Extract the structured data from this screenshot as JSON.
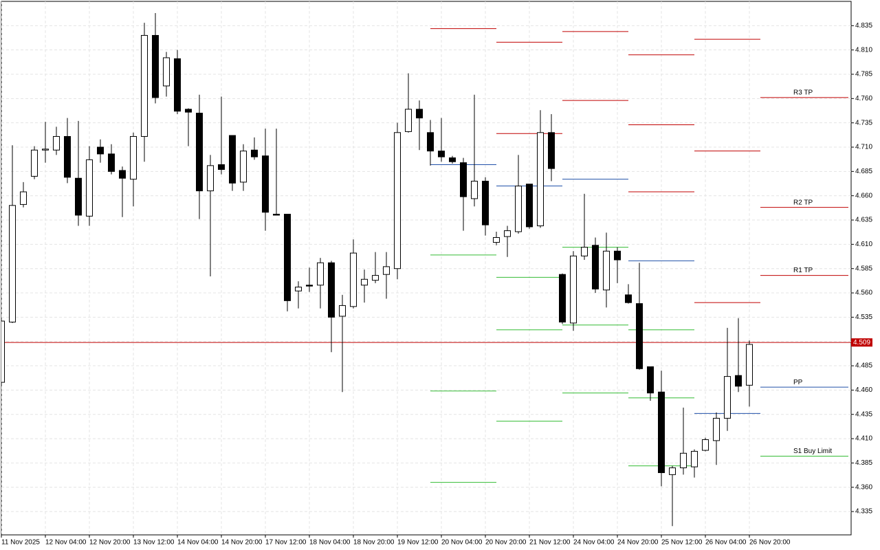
{
  "chart_data": {
    "type": "candlestick",
    "categories": [
      "11 Nov 2025",
      null,
      null,
      null,
      "12 Nov 04:00",
      null,
      null,
      null,
      "12 Nov 20:00",
      null,
      null,
      null,
      "13 Nov 12:00",
      null,
      null,
      null,
      "14 Nov 04:00",
      null,
      null,
      null,
      "14 Nov 20:00",
      null,
      null,
      null,
      "17 Nov 12:00",
      null,
      null,
      null,
      "18 Nov 04:00",
      null,
      null,
      null,
      "18 Nov 20:00",
      null,
      null,
      null,
      "19 Nov 12:00",
      null,
      null,
      null,
      "20 Nov 04:00",
      null,
      null,
      null,
      "20 Nov 20:00",
      null,
      null,
      null,
      "21 Nov 12:00",
      null,
      null,
      null,
      "24 Nov 04:00",
      null,
      null,
      null,
      "24 Nov 20:00",
      null,
      null,
      null,
      "25 Nov 12:00",
      null,
      null,
      null,
      "26 Nov 04:00",
      null,
      null,
      null,
      "26 Nov 20:00"
    ],
    "open": [
      4.468,
      4.53,
      4.651,
      4.68,
      4.707,
      4.707,
      4.721,
      4.678,
      4.639,
      4.71,
      4.703,
      4.686,
      4.677,
      4.721,
      4.825,
      4.773,
      4.801,
      4.749,
      4.745,
      4.665,
      4.692,
      4.722,
      4.674,
      4.707,
      4.701,
      4.641,
      4.641,
      4.562,
      4.568,
      4.568,
      4.591,
      4.536,
      4.546,
      4.568,
      4.573,
      4.579,
      4.585,
      4.726,
      4.749,
      4.725,
      4.706,
      4.699,
      4.694,
      4.657,
      4.675,
      4.612,
      4.618,
      4.623,
      4.672,
      4.629,
      4.725,
      4.579,
      4.529,
      4.598,
      4.609,
      4.563,
      4.603,
      4.558,
      4.549,
      4.484,
      4.458,
      4.373,
      4.38,
      4.381,
      4.398,
      4.408,
      4.431,
      4.475,
      4.465
    ],
    "high": [
      4.533,
      4.712,
      4.674,
      4.711,
      4.736,
      4.731,
      4.74,
      4.737,
      4.711,
      4.718,
      4.713,
      4.69,
      4.725,
      4.838,
      4.848,
      4.808,
      4.81,
      4.75,
      4.764,
      4.702,
      4.762,
      4.722,
      4.713,
      4.72,
      4.729,
      4.729,
      4.641,
      4.572,
      4.586,
      4.596,
      4.593,
      4.558,
      4.615,
      4.584,
      4.602,
      4.602,
      4.735,
      4.786,
      4.758,
      4.738,
      4.74,
      4.701,
      4.699,
      4.764,
      4.679,
      4.623,
      4.629,
      4.702,
      4.672,
      4.748,
      4.744,
      4.58,
      4.603,
      4.662,
      4.617,
      4.622,
      4.607,
      4.569,
      4.591,
      4.484,
      4.48,
      4.382,
      4.442,
      4.399,
      4.411,
      4.437,
      4.524,
      4.534,
      4.511
    ],
    "low": [
      4.466,
      4.529,
      4.648,
      4.677,
      4.694,
      4.702,
      4.673,
      4.629,
      4.629,
      4.694,
      4.682,
      4.638,
      4.649,
      4.695,
      4.755,
      4.762,
      4.744,
      4.711,
      4.636,
      4.577,
      4.682,
      4.665,
      4.665,
      4.697,
      4.624,
      4.64,
      4.541,
      4.544,
      4.561,
      4.544,
      4.499,
      4.458,
      4.544,
      4.55,
      4.57,
      4.554,
      4.574,
      4.725,
      4.707,
      4.691,
      4.695,
      4.693,
      4.624,
      4.649,
      4.619,
      4.609,
      4.597,
      4.621,
      4.626,
      4.627,
      4.675,
      4.528,
      4.521,
      4.594,
      4.56,
      4.545,
      4.57,
      4.549,
      4.481,
      4.449,
      4.361,
      4.32,
      4.373,
      4.37,
      4.397,
      4.383,
      4.418,
      4.458,
      4.443
    ],
    "close": [
      4.531,
      4.65,
      4.664,
      4.707,
      4.708,
      4.721,
      4.679,
      4.64,
      4.697,
      4.703,
      4.685,
      4.678,
      4.721,
      4.825,
      4.761,
      4.802,
      4.747,
      4.746,
      4.665,
      4.691,
      4.687,
      4.673,
      4.706,
      4.7,
      4.643,
      4.64,
      4.552,
      4.566,
      4.567,
      4.591,
      4.535,
      4.547,
      4.601,
      4.574,
      4.578,
      4.587,
      4.725,
      4.749,
      4.74,
      4.706,
      4.7,
      4.695,
      4.659,
      4.675,
      4.63,
      4.617,
      4.624,
      4.67,
      4.628,
      4.725,
      4.688,
      4.53,
      4.598,
      4.607,
      4.564,
      4.603,
      4.594,
      4.55,
      4.482,
      4.457,
      4.375,
      4.38,
      4.395,
      4.397,
      4.409,
      4.431,
      4.474,
      4.464,
      4.507
    ],
    "ylim": [
      4.311,
      4.86
    ],
    "yticks": [
      4.335,
      {
        "value": 4.36,
        "label": "4.360"
      },
      4.385,
      {
        "value": 4.41,
        "label": "4.410"
      },
      4.435,
      {
        "value": 4.46,
        "label": "4.460"
      },
      4.485,
      {
        "value": 4.51,
        "label": "4.510"
      },
      4.535,
      {
        "value": 4.56,
        "label": "4.560"
      },
      4.585,
      {
        "value": 4.61,
        "label": "4.610"
      },
      4.635,
      {
        "value": 4.66,
        "label": "4.660"
      },
      4.685,
      {
        "value": 4.71,
        "label": "4.710"
      },
      4.735,
      {
        "value": 4.76,
        "label": "4.760"
      },
      4.785,
      {
        "value": 4.81,
        "label": "4.810"
      },
      4.835
    ],
    "grid": true,
    "last_price": 4.509,
    "last_price_color": "#c00000",
    "levels": [
      [
        {
          "value": 4.832,
          "color": "#c00000"
        },
        {
          "value": 4.692,
          "color": "#1f4fa8"
        },
        {
          "value": 4.599,
          "color": "#33bb33"
        },
        {
          "value": 4.459,
          "color": "#33bb33"
        },
        {
          "value": 4.365,
          "color": "#33bb33"
        }
      ],
      [
        {
          "value": 4.818,
          "color": "#c00000"
        },
        {
          "value": 4.724,
          "color": "#c00000"
        },
        {
          "value": 4.67,
          "color": "#1f4fa8"
        },
        {
          "value": 4.576,
          "color": "#33bb33"
        },
        {
          "value": 4.522,
          "color": "#33bb33"
        },
        {
          "value": 4.428,
          "color": "#33bb33"
        }
      ],
      [
        {
          "value": 4.829,
          "color": "#c00000"
        },
        {
          "value": 4.758,
          "color": "#c00000"
        },
        {
          "value": 4.677,
          "color": "#1f4fa8"
        },
        {
          "value": 4.607,
          "color": "#33bb33"
        },
        {
          "value": 4.527,
          "color": "#33bb33"
        },
        {
          "value": 4.457,
          "color": "#33bb33"
        }
      ],
      [
        {
          "value": 4.805,
          "color": "#c00000"
        },
        {
          "value": 4.733,
          "color": "#c00000"
        },
        {
          "value": 4.664,
          "color": "#c00000"
        },
        {
          "value": 4.593,
          "color": "#1f4fa8"
        },
        {
          "value": 4.522,
          "color": "#33bb33"
        },
        {
          "value": 4.452,
          "color": "#33bb33"
        },
        {
          "value": 4.382,
          "color": "#33bb33"
        }
      ],
      [
        {
          "value": 4.821,
          "color": "#c00000"
        },
        {
          "value": 4.706,
          "color": "#c00000"
        },
        {
          "value": 4.55,
          "color": "#c00000"
        },
        {
          "value": 4.436,
          "color": "#1f4fa8"
        }
      ],
      [
        {
          "value": 4.761,
          "color": "#c00000",
          "label": "R3 TP"
        },
        {
          "value": 4.648,
          "color": "#c00000",
          "label": "R2 TP"
        },
        {
          "value": 4.578,
          "color": "#c00000",
          "label": "R1 TP"
        },
        {
          "value": 4.463,
          "color": "#1f4fa8",
          "label": "PP"
        },
        {
          "value": 4.392,
          "color": "#33bb33",
          "label": "S1 Buy Limit"
        }
      ]
    ]
  }
}
